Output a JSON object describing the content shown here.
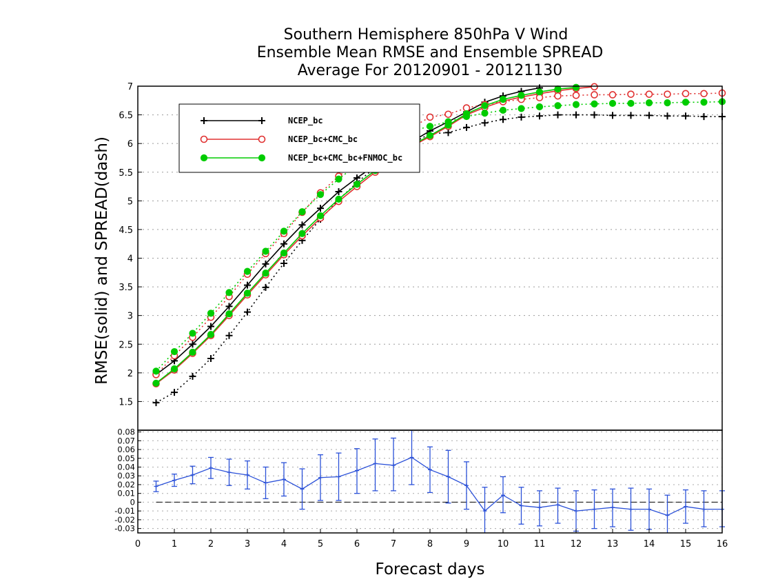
{
  "chart_data": [
    {
      "type": "line",
      "title": [
        "Southern Hemisphere 850hPa V Wind",
        "Ensemble Mean RMSE and Ensemble SPREAD",
        "Average For 20120901 - 20121130"
      ],
      "ylabel": "RMSE(solid) and SPREAD(dash)",
      "ylim": [
        1.0,
        7.0
      ],
      "yticks": [
        "1.5",
        "2",
        "2.5",
        "3",
        "3.5",
        "4",
        "4.5",
        "5",
        "5.5",
        "6",
        "6.5",
        "7"
      ],
      "xlim": [
        0,
        16
      ],
      "grid": true,
      "legend_position": "top-left",
      "x": [
        0.5,
        1,
        1.5,
        2,
        2.5,
        3,
        3.5,
        4,
        4.5,
        5,
        5.5,
        6,
        6.5,
        7,
        7.5,
        8,
        8.5,
        9,
        9.5,
        10,
        10.5,
        11,
        11.5,
        12,
        12.5,
        13,
        13.5,
        14,
        14.5,
        15,
        15.5,
        16
      ],
      "series": [
        {
          "name": "NCEP_bc",
          "kind": "rmse",
          "color": "#000000",
          "marker": "plus",
          "values": [
            1.97,
            2.21,
            2.5,
            2.81,
            3.16,
            3.53,
            3.9,
            4.25,
            4.58,
            4.87,
            5.16,
            5.4,
            5.62,
            5.83,
            6.03,
            6.22,
            6.38,
            6.55,
            6.72,
            6.83,
            6.91,
            6.97,
            7.02,
            7.06,
            7.09,
            7.11,
            7.13,
            7.15,
            7.16,
            7.17,
            7.18,
            7.19
          ]
        },
        {
          "name": "NCEP_bc",
          "kind": "spread",
          "color": "#000000",
          "marker": "plus",
          "values": [
            1.48,
            1.66,
            1.94,
            2.25,
            2.65,
            3.06,
            3.49,
            3.91,
            4.31,
            4.68,
            5.02,
            5.32,
            5.58,
            5.8,
            6.0,
            6.17,
            6.19,
            6.28,
            6.36,
            6.42,
            6.46,
            6.48,
            6.5,
            6.5,
            6.5,
            6.49,
            6.49,
            6.49,
            6.48,
            6.48,
            6.47,
            6.47
          ]
        },
        {
          "name": "NCEP_bc+CMC_bc",
          "kind": "rmse",
          "color": "#e03030",
          "marker": "circle",
          "values": [
            1.81,
            2.05,
            2.34,
            2.65,
            3.0,
            3.36,
            3.71,
            4.06,
            4.39,
            4.7,
            4.99,
            5.25,
            5.5,
            5.73,
            5.95,
            6.12,
            6.3,
            6.5,
            6.63,
            6.74,
            6.81,
            6.87,
            6.92,
            6.96,
            6.99,
            7.01,
            7.03,
            7.05,
            7.06,
            7.07,
            7.08,
            7.09
          ]
        },
        {
          "name": "NCEP_bc+CMC_bc",
          "kind": "spread",
          "color": "#e03030",
          "marker": "circle",
          "values": [
            1.97,
            2.3,
            2.62,
            2.97,
            3.33,
            3.72,
            4.08,
            4.43,
            4.8,
            5.14,
            5.43,
            5.68,
            5.9,
            6.1,
            6.28,
            6.46,
            6.51,
            6.62,
            6.68,
            6.73,
            6.77,
            6.8,
            6.83,
            6.84,
            6.85,
            6.85,
            6.86,
            6.86,
            6.86,
            6.87,
            6.87,
            6.88
          ]
        },
        {
          "name": "NCEP_bc+CMC_bc+FNMOC_bc",
          "kind": "rmse",
          "color": "#00cc00",
          "marker": "dot",
          "values": [
            1.82,
            2.07,
            2.36,
            2.67,
            3.03,
            3.39,
            3.74,
            4.09,
            4.43,
            4.74,
            5.03,
            5.29,
            5.53,
            5.76,
            5.97,
            6.14,
            6.32,
            6.52,
            6.66,
            6.77,
            6.84,
            6.9,
            6.95,
            6.98,
            7.01,
            7.03,
            7.05,
            7.07,
            7.08,
            7.09,
            7.1,
            7.11
          ]
        },
        {
          "name": "NCEP_bc+CMC_bc+FNMOC_bc",
          "kind": "spread",
          "color": "#00cc00",
          "marker": "dot",
          "values": [
            2.03,
            2.37,
            2.69,
            3.04,
            3.4,
            3.77,
            4.12,
            4.47,
            4.81,
            5.11,
            5.38,
            5.63,
            5.85,
            6.05,
            6.22,
            6.3,
            6.38,
            6.47,
            6.53,
            6.58,
            6.61,
            6.64,
            6.66,
            6.68,
            6.69,
            6.7,
            6.7,
            6.71,
            6.71,
            6.72,
            6.72,
            6.73
          ]
        }
      ]
    },
    {
      "type": "line",
      "xlabel": "Forecast days",
      "xticks": [
        "0",
        "1",
        "2",
        "3",
        "4",
        "5",
        "6",
        "7",
        "8",
        "9",
        "10",
        "11",
        "12",
        "13",
        "14",
        "15",
        "16"
      ],
      "xlim": [
        0,
        16
      ],
      "ylim": [
        -0.035,
        0.082
      ],
      "yticks": [
        "-0.03",
        "-0.02",
        "-0.01",
        "0",
        "0.01",
        "0.02",
        "0.03",
        "0.04",
        "0.05",
        "0.06",
        "0.07",
        "0.08"
      ],
      "grid": true,
      "color": "#2a50d8",
      "x": [
        0.5,
        1,
        1.5,
        2,
        2.5,
        3,
        3.5,
        4,
        4.5,
        5,
        5.5,
        6,
        6.5,
        7,
        7.5,
        8,
        8.5,
        9,
        9.5,
        10,
        10.5,
        11,
        11.5,
        12,
        12.5,
        13,
        13.5,
        14,
        14.5,
        15,
        15.5,
        16
      ],
      "values": [
        0.018,
        0.025,
        0.031,
        0.039,
        0.034,
        0.031,
        0.022,
        0.026,
        0.015,
        0.028,
        0.029,
        0.036,
        0.044,
        0.042,
        0.051,
        0.037,
        0.029,
        0.019,
        -0.01,
        0.008,
        -0.004,
        -0.006,
        -0.003,
        -0.01,
        -0.008,
        -0.006,
        -0.008,
        -0.008,
        -0.015,
        -0.005,
        -0.008,
        -0.008
      ],
      "error_low": [
        0.012,
        0.018,
        0.021,
        0.027,
        0.019,
        0.015,
        0.004,
        0.007,
        -0.008,
        0.002,
        0.002,
        0.01,
        0.013,
        0.013,
        0.02,
        0.011,
        -0.001,
        -0.008,
        -0.04,
        -0.012,
        -0.025,
        -0.027,
        -0.024,
        -0.033,
        -0.03,
        -0.028,
        -0.032,
        -0.031,
        -0.04,
        -0.024,
        -0.028,
        -0.028
      ],
      "error_high": [
        0.024,
        0.032,
        0.041,
        0.051,
        0.049,
        0.047,
        0.04,
        0.045,
        0.038,
        0.054,
        0.056,
        0.061,
        0.072,
        0.073,
        0.085,
        0.063,
        0.059,
        0.046,
        0.017,
        0.029,
        0.017,
        0.013,
        0.016,
        0.013,
        0.014,
        0.015,
        0.016,
        0.015,
        0.008,
        0.014,
        0.013,
        0.013
      ]
    }
  ],
  "legend": {
    "items": [
      {
        "label": "NCEP_bc",
        "color": "#000000",
        "marker": "plus"
      },
      {
        "label": "NCEP_bc+CMC_bc",
        "color": "#e03030",
        "marker": "circle"
      },
      {
        "label": "NCEP_bc+CMC_bc+FNMOC_bc",
        "color": "#00cc00",
        "marker": "dot"
      }
    ]
  }
}
